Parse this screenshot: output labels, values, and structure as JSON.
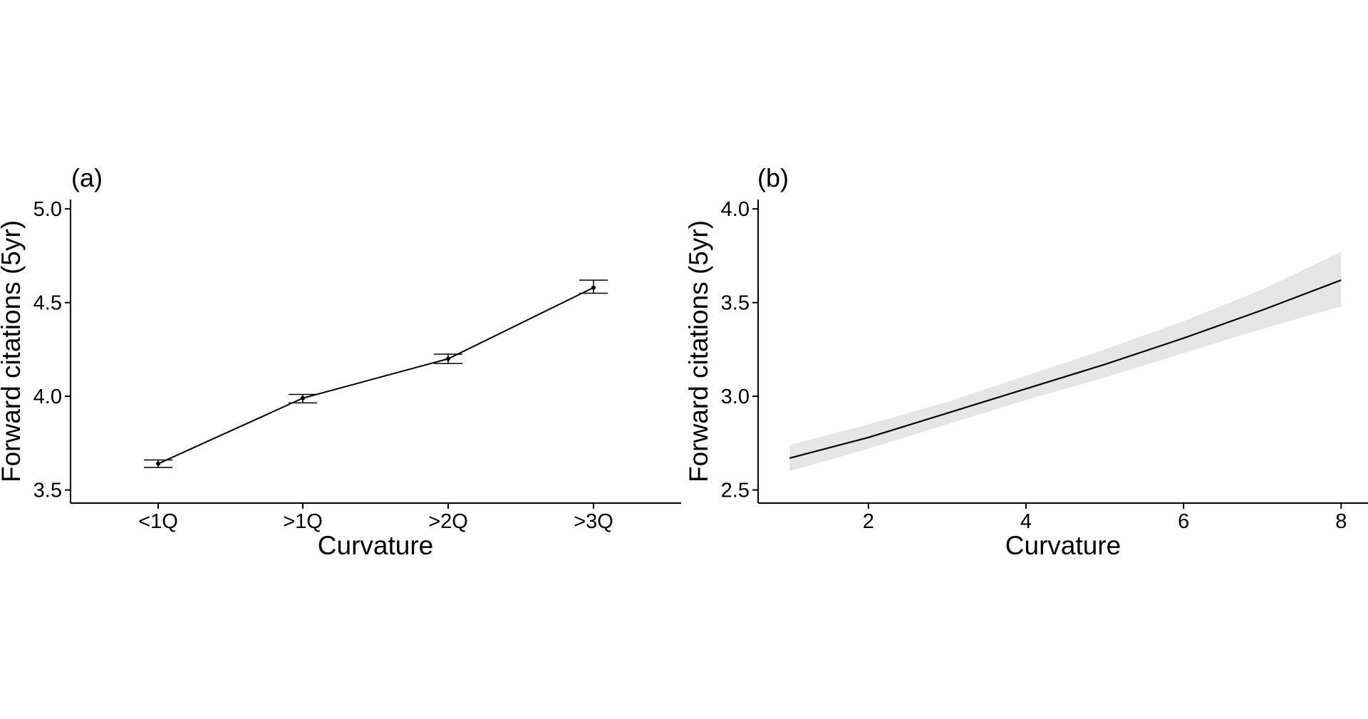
{
  "chart_data": [
    {
      "type": "line",
      "panel_label": "(a)",
      "title": "",
      "xlabel": "Curvature",
      "ylabel": "Forward citations (5yr)",
      "categories": [
        "<1Q",
        ">1Q",
        ">2Q",
        ">3Q"
      ],
      "series": [
        {
          "values": [
            3.64,
            3.99,
            4.2,
            4.58
          ],
          "error_low": [
            3.62,
            3.965,
            4.175,
            4.55
          ],
          "error_high": [
            3.66,
            4.01,
            4.225,
            4.62
          ]
        }
      ],
      "ylim": [
        3.43,
        5.05
      ],
      "yticks": [
        3.5,
        4.0,
        4.5,
        5.0
      ],
      "ytick_labels": [
        "3.5",
        "4.0",
        "4.5",
        "5.0"
      ],
      "grid": false,
      "colors": {
        "line": "#000000",
        "error_bar": "#000000"
      }
    },
    {
      "type": "line",
      "panel_label": "(b)",
      "title": "",
      "xlabel": "Curvature",
      "ylabel": "Forward citations (5yr)",
      "x": [
        1,
        2,
        3,
        4,
        5,
        6,
        7,
        8
      ],
      "series": [
        {
          "values": [
            2.67,
            2.78,
            2.91,
            3.04,
            3.17,
            3.31,
            3.46,
            3.62
          ],
          "lower": [
            2.6,
            2.72,
            2.85,
            2.98,
            3.1,
            3.23,
            3.36,
            3.48
          ],
          "upper": [
            2.74,
            2.85,
            2.97,
            3.11,
            3.25,
            3.4,
            3.57,
            3.77
          ]
        }
      ],
      "xlim": [
        0.6,
        8.35
      ],
      "xticks": [
        2,
        4,
        6,
        8
      ],
      "xtick_labels": [
        "2",
        "4",
        "6",
        "8"
      ],
      "ylim": [
        2.43,
        4.05
      ],
      "yticks": [
        2.5,
        3.0,
        3.5,
        4.0
      ],
      "ytick_labels": [
        "2.5",
        "3.0",
        "3.5",
        "4.0"
      ],
      "grid": false,
      "colors": {
        "line": "#000000",
        "band": "#e5e5e5"
      }
    }
  ]
}
